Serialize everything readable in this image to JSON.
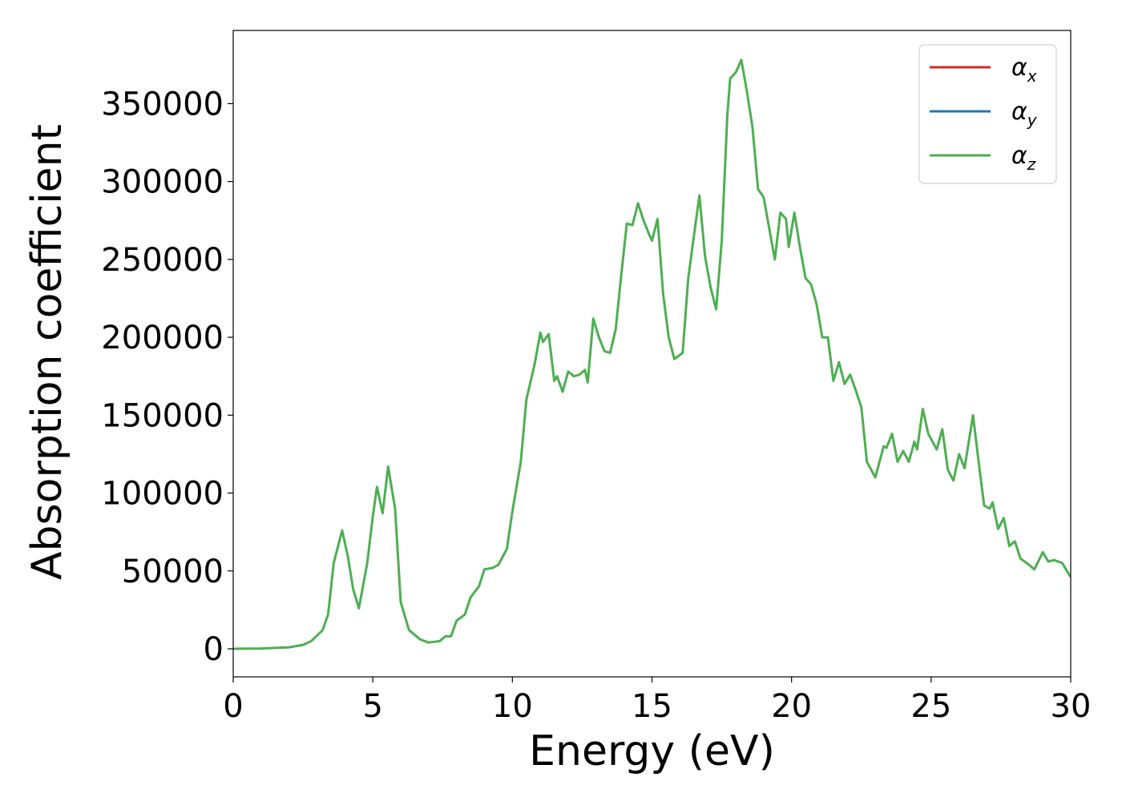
{
  "chart_data": {
    "type": "line",
    "title": "",
    "xlabel": "Energy (eV)",
    "ylabel": "Absorption coefficient",
    "xlim": [
      0,
      30
    ],
    "ylim": [
      -18000,
      397000
    ],
    "xticks": [
      0,
      5,
      10,
      15,
      20,
      25,
      30
    ],
    "yticks": [
      0,
      50000,
      100000,
      150000,
      200000,
      250000,
      300000,
      350000
    ],
    "grid": false,
    "legend_position": "top-right",
    "series": [
      {
        "name": "α",
        "subscript": "x",
        "color": "#d62728",
        "points": []
      },
      {
        "name": "α",
        "subscript": "y",
        "color": "#1f77b4",
        "points": []
      },
      {
        "name": "α",
        "subscript": "z",
        "color": "#4caf50",
        "points": [
          [
            0,
            0
          ],
          [
            1,
            200
          ],
          [
            2,
            1000
          ],
          [
            2.5,
            2500
          ],
          [
            2.8,
            5000
          ],
          [
            3.2,
            12000
          ],
          [
            3.4,
            22000
          ],
          [
            3.6,
            55000
          ],
          [
            3.9,
            76000
          ],
          [
            4.1,
            60000
          ],
          [
            4.3,
            38000
          ],
          [
            4.5,
            26000
          ],
          [
            4.8,
            55000
          ],
          [
            5.0,
            85000
          ],
          [
            5.15,
            104000
          ],
          [
            5.35,
            87000
          ],
          [
            5.55,
            117000
          ],
          [
            5.8,
            90000
          ],
          [
            6.0,
            30000
          ],
          [
            6.3,
            12000
          ],
          [
            6.7,
            6000
          ],
          [
            7.0,
            4000
          ],
          [
            7.4,
            5000
          ],
          [
            7.6,
            8000
          ],
          [
            7.8,
            8000
          ],
          [
            8.0,
            18000
          ],
          [
            8.3,
            22000
          ],
          [
            8.5,
            33000
          ],
          [
            8.8,
            40000
          ],
          [
            9.0,
            51000
          ],
          [
            9.3,
            52000
          ],
          [
            9.5,
            54000
          ],
          [
            9.8,
            64000
          ],
          [
            10.0,
            88000
          ],
          [
            10.3,
            120000
          ],
          [
            10.5,
            160000
          ],
          [
            10.8,
            183000
          ],
          [
            11.0,
            203000
          ],
          [
            11.1,
            197000
          ],
          [
            11.3,
            202000
          ],
          [
            11.5,
            172000
          ],
          [
            11.6,
            175000
          ],
          [
            11.8,
            165000
          ],
          [
            12.0,
            178000
          ],
          [
            12.2,
            175000
          ],
          [
            12.4,
            176000
          ],
          [
            12.6,
            179000
          ],
          [
            12.7,
            171000
          ],
          [
            12.9,
            212000
          ],
          [
            13.1,
            200000
          ],
          [
            13.3,
            191000
          ],
          [
            13.5,
            190000
          ],
          [
            13.7,
            205000
          ],
          [
            13.9,
            240000
          ],
          [
            14.1,
            273000
          ],
          [
            14.3,
            272000
          ],
          [
            14.5,
            286000
          ],
          [
            14.7,
            275000
          ],
          [
            14.9,
            266000
          ],
          [
            15.0,
            262000
          ],
          [
            15.2,
            276000
          ],
          [
            15.4,
            228000
          ],
          [
            15.6,
            200000
          ],
          [
            15.8,
            186000
          ],
          [
            16.1,
            190000
          ],
          [
            16.3,
            238000
          ],
          [
            16.5,
            265000
          ],
          [
            16.7,
            291000
          ],
          [
            16.9,
            252000
          ],
          [
            17.1,
            232000
          ],
          [
            17.3,
            218000
          ],
          [
            17.5,
            262000
          ],
          [
            17.7,
            342000
          ],
          [
            17.8,
            366000
          ],
          [
            18.0,
            370000
          ],
          [
            18.2,
            378000
          ],
          [
            18.4,
            358000
          ],
          [
            18.6,
            335000
          ],
          [
            18.8,
            295000
          ],
          [
            19.0,
            290000
          ],
          [
            19.2,
            270000
          ],
          [
            19.4,
            250000
          ],
          [
            19.6,
            280000
          ],
          [
            19.8,
            276000
          ],
          [
            19.9,
            258000
          ],
          [
            20.1,
            280000
          ],
          [
            20.3,
            258000
          ],
          [
            20.5,
            238000
          ],
          [
            20.7,
            234000
          ],
          [
            20.9,
            221000
          ],
          [
            21.1,
            200000
          ],
          [
            21.3,
            200000
          ],
          [
            21.5,
            172000
          ],
          [
            21.7,
            184000
          ],
          [
            21.9,
            170000
          ],
          [
            22.1,
            176000
          ],
          [
            22.3,
            166000
          ],
          [
            22.5,
            155000
          ],
          [
            22.7,
            120000
          ],
          [
            23.0,
            110000
          ],
          [
            23.3,
            130000
          ],
          [
            23.4,
            129000
          ],
          [
            23.6,
            138000
          ],
          [
            23.8,
            120000
          ],
          [
            24.0,
            127000
          ],
          [
            24.2,
            120000
          ],
          [
            24.4,
            133000
          ],
          [
            24.5,
            128000
          ],
          [
            24.7,
            154000
          ],
          [
            24.9,
            138000
          ],
          [
            25.2,
            128000
          ],
          [
            25.4,
            141000
          ],
          [
            25.6,
            115000
          ],
          [
            25.8,
            108000
          ],
          [
            26.0,
            125000
          ],
          [
            26.2,
            116000
          ],
          [
            26.5,
            150000
          ],
          [
            26.7,
            120000
          ],
          [
            26.9,
            92000
          ],
          [
            27.1,
            90000
          ],
          [
            27.2,
            94000
          ],
          [
            27.4,
            77000
          ],
          [
            27.6,
            84000
          ],
          [
            27.8,
            66000
          ],
          [
            28.0,
            69000
          ],
          [
            28.2,
            58000
          ],
          [
            28.5,
            54000
          ],
          [
            28.7,
            51000
          ],
          [
            29.0,
            62000
          ],
          [
            29.2,
            56000
          ],
          [
            29.4,
            57000
          ],
          [
            29.7,
            55000
          ],
          [
            29.9,
            49000
          ],
          [
            30.0,
            46000
          ]
        ]
      }
    ]
  }
}
